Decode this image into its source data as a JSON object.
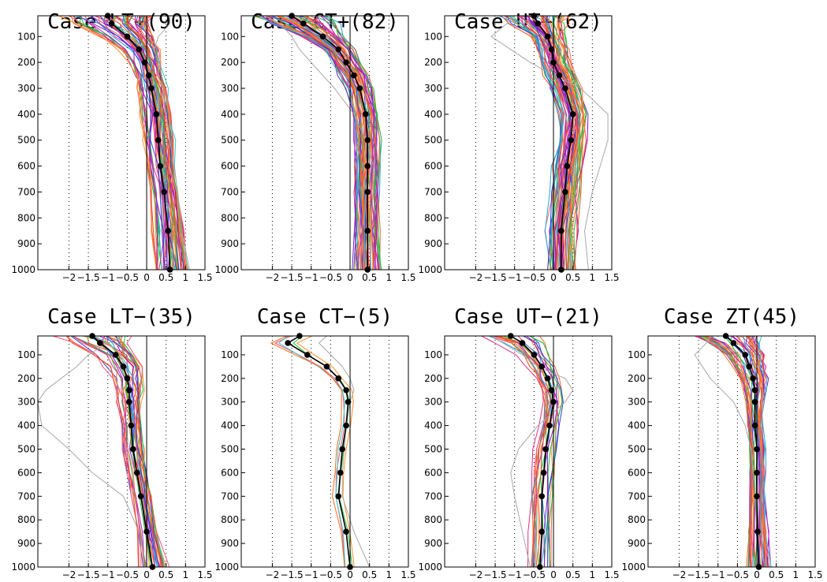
{
  "chart_data": [
    {
      "type": "line",
      "title": "Case LT+(90)",
      "xlim": [
        -2.8,
        1.5
      ],
      "ylim": [
        1000,
        20
      ],
      "xticks": [
        -2,
        -1.5,
        -1,
        -0.5,
        0,
        0.5,
        1,
        1.5
      ],
      "xtick_labels": [
        "−2",
        "−1.5",
        "−1",
        "−0.5",
        "0",
        "0.5",
        "1",
        "1.5"
      ],
      "yticks": [
        100,
        200,
        300,
        400,
        500,
        600,
        700,
        800,
        900,
        1000
      ],
      "ytick_labels": [
        "100",
        "200",
        "300",
        "400",
        "500",
        "600",
        "700",
        "800",
        "900",
        "1000"
      ],
      "levels": [
        20,
        50,
        100,
        150,
        200,
        250,
        300,
        400,
        500,
        600,
        700,
        850,
        1000
      ],
      "mean": [
        -1.0,
        -0.9,
        -0.5,
        -0.2,
        -0.05,
        0.05,
        0.12,
        0.25,
        0.3,
        0.35,
        0.45,
        0.55,
        0.6
      ],
      "spread": [
        1.2,
        1.0,
        0.7,
        0.5,
        0.4,
        0.35,
        0.4,
        0.4,
        0.4,
        0.35,
        0.35,
        0.4,
        0.45
      ],
      "count": 90,
      "outlier": [
        0.6,
        0.6,
        0.3,
        0.2,
        0.3,
        0.3,
        0.4,
        0.5,
        0.6,
        0.7,
        0.8,
        0.9,
        1.1
      ],
      "grid": true
    },
    {
      "type": "line",
      "title": "Case CT+(82)",
      "xlim": [
        -2.8,
        1.5
      ],
      "ylim": [
        1000,
        20
      ],
      "xticks": [
        -2,
        -1.5,
        -1,
        -0.5,
        0,
        0.5,
        1,
        1.5
      ],
      "xtick_labels": [
        "−2",
        "−1.5",
        "−1",
        "−0.5",
        "0",
        "0.5",
        "1",
        "1.5"
      ],
      "yticks": [
        100,
        200,
        300,
        400,
        500,
        600,
        700,
        800,
        900,
        1000
      ],
      "ytick_labels": [
        "100",
        "200",
        "300",
        "400",
        "500",
        "600",
        "700",
        "800",
        "900",
        "1000"
      ],
      "levels": [
        20,
        50,
        100,
        150,
        200,
        250,
        300,
        400,
        500,
        600,
        700,
        850,
        1000
      ],
      "mean": [
        -1.5,
        -1.2,
        -0.7,
        -0.3,
        -0.1,
        0.1,
        0.25,
        0.4,
        0.45,
        0.45,
        0.45,
        0.45,
        0.45
      ],
      "spread": [
        1.0,
        0.9,
        0.6,
        0.45,
        0.4,
        0.4,
        0.35,
        0.35,
        0.35,
        0.35,
        0.35,
        0.35,
        0.4
      ],
      "count": 82,
      "outlier": [
        -2.2,
        -1.8,
        -1.5,
        -1.3,
        -1.0,
        -0.7,
        -0.4,
        0.1,
        0.4,
        0.6,
        0.6,
        0.5,
        0.4
      ],
      "grid": true
    },
    {
      "type": "line",
      "title": "Case UT+(62)",
      "xlim": [
        -2.8,
        1.5
      ],
      "ylim": [
        1000,
        20
      ],
      "xticks": [
        -2,
        -1.5,
        -1,
        -0.5,
        0,
        0.5,
        1,
        1.5
      ],
      "xtick_labels": [
        "−2",
        "−1.5",
        "−1",
        "−0.5",
        "0",
        "0.5",
        "1",
        "1.5"
      ],
      "yticks": [
        100,
        200,
        300,
        400,
        500,
        600,
        700,
        800,
        900,
        1000
      ],
      "ytick_labels": [
        "100",
        "200",
        "300",
        "400",
        "500",
        "600",
        "700",
        "800",
        "900",
        "1000"
      ],
      "levels": [
        20,
        50,
        100,
        150,
        200,
        250,
        300,
        400,
        500,
        600,
        700,
        850,
        1000
      ],
      "mean": [
        -0.5,
        -0.4,
        -0.15,
        -0.05,
        0.0,
        0.15,
        0.3,
        0.5,
        0.45,
        0.35,
        0.3,
        0.2,
        0.2
      ],
      "spread": [
        1.0,
        0.8,
        0.5,
        0.45,
        0.45,
        0.45,
        0.45,
        0.4,
        0.4,
        0.4,
        0.4,
        0.4,
        0.4
      ],
      "count": 62,
      "outlier": [
        -1.0,
        -1.2,
        -1.6,
        -1.1,
        -0.6,
        0.0,
        0.7,
        1.4,
        1.4,
        1.2,
        1.0,
        0.8,
        0.9
      ],
      "grid": true
    },
    {
      "type": "line",
      "title": "Case LT−(35)",
      "xlim": [
        -2.8,
        1.5
      ],
      "ylim": [
        1000,
        20
      ],
      "xticks": [
        -2,
        -1.5,
        -1,
        -0.5,
        0,
        0.5,
        1,
        1.5
      ],
      "xtick_labels": [
        "−2",
        "−1.5",
        "−1",
        "−0.5",
        "0",
        "0.5",
        "1",
        "1.5"
      ],
      "yticks": [
        100,
        200,
        300,
        400,
        500,
        600,
        700,
        800,
        900,
        1000
      ],
      "ytick_labels": [
        "100",
        "200",
        "300",
        "400",
        "500",
        "600",
        "700",
        "800",
        "900",
        "1000"
      ],
      "levels": [
        20,
        50,
        100,
        150,
        200,
        250,
        300,
        400,
        500,
        600,
        700,
        850,
        1000
      ],
      "mean": [
        -1.4,
        -1.2,
        -0.8,
        -0.6,
        -0.5,
        -0.45,
        -0.45,
        -0.4,
        -0.35,
        -0.25,
        -0.15,
        0.0,
        0.15
      ],
      "spread": [
        1.0,
        0.8,
        0.6,
        0.5,
        0.4,
        0.4,
        0.35,
        0.3,
        0.3,
        0.3,
        0.3,
        0.3,
        0.4
      ],
      "count": 35,
      "outlier": [
        -0.6,
        -1.0,
        -1.5,
        -1.8,
        -2.2,
        -2.6,
        -2.8,
        -2.7,
        -2.0,
        -1.4,
        -0.6,
        -0.2,
        0.0
      ],
      "grid": true
    },
    {
      "type": "line",
      "title": "Case CT−(5)",
      "xlim": [
        -2.8,
        1.5
      ],
      "ylim": [
        1000,
        20
      ],
      "xticks": [
        -2,
        -1.5,
        -1,
        -0.5,
        0,
        0.5,
        1,
        1.5
      ],
      "xtick_labels": [
        "−2",
        "−1.5",
        "−1",
        "−0.5",
        "0",
        "0.5",
        "1",
        "1.5"
      ],
      "yticks": [
        100,
        200,
        300,
        400,
        500,
        600,
        700,
        800,
        900,
        1000
      ],
      "ytick_labels": [
        "100",
        "200",
        "300",
        "400",
        "500",
        "600",
        "700",
        "800",
        "900",
        "1000"
      ],
      "levels": [
        20,
        50,
        100,
        150,
        200,
        250,
        300,
        400,
        500,
        600,
        700,
        850,
        1000
      ],
      "mean": [
        -1.3,
        -1.6,
        -1.1,
        -0.6,
        -0.3,
        -0.1,
        -0.05,
        -0.1,
        -0.2,
        -0.25,
        -0.3,
        -0.1,
        0.0
      ],
      "spread": [
        0.5,
        0.45,
        0.4,
        0.3,
        0.25,
        0.2,
        0.2,
        0.15,
        0.15,
        0.15,
        0.15,
        0.15,
        0.2
      ],
      "count": 5,
      "outlier": [
        -0.6,
        -0.8,
        -0.5,
        -0.2,
        0.0,
        0.1,
        0.0,
        -0.1,
        -0.15,
        -0.2,
        -0.2,
        0.1,
        0.5
      ],
      "grid": true
    },
    {
      "type": "line",
      "title": "Case UT−(21)",
      "xlim": [
        -2.8,
        1.5
      ],
      "ylim": [
        1000,
        20
      ],
      "xticks": [
        -2,
        -1.5,
        -1,
        -0.5,
        0,
        0.5,
        1,
        1.5
      ],
      "xtick_labels": [
        "−2",
        "−1.5",
        "−1",
        "−0.5",
        "0",
        "0.5",
        "1",
        "1.5"
      ],
      "yticks": [
        100,
        200,
        300,
        400,
        500,
        600,
        700,
        800,
        900,
        1000
      ],
      "ytick_labels": [
        "100",
        "200",
        "300",
        "400",
        "500",
        "600",
        "700",
        "800",
        "900",
        "1000"
      ],
      "levels": [
        20,
        50,
        100,
        150,
        200,
        250,
        300,
        400,
        500,
        600,
        700,
        850,
        1000
      ],
      "mean": [
        -1.1,
        -0.8,
        -0.5,
        -0.3,
        -0.15,
        -0.05,
        0.0,
        -0.1,
        -0.2,
        -0.25,
        -0.3,
        -0.3,
        -0.35
      ],
      "spread": [
        0.9,
        0.7,
        0.5,
        0.4,
        0.35,
        0.3,
        0.3,
        0.3,
        0.35,
        0.35,
        0.35,
        0.35,
        0.4
      ],
      "count": 21,
      "outlier": [
        -1.6,
        -1.3,
        -0.8,
        -0.4,
        0.3,
        0.5,
        0.3,
        -0.4,
        -0.9,
        -1.1,
        -1.0,
        -0.8,
        -0.6
      ],
      "grid": true
    },
    {
      "type": "line",
      "title": "Case ZT(45)",
      "xlim": [
        -2.8,
        1.5
      ],
      "ylim": [
        1000,
        20
      ],
      "xticks": [
        -2,
        -1.5,
        -1,
        -0.5,
        0,
        0.5,
        1,
        1.5
      ],
      "xtick_labels": [
        "−2",
        "−1.5",
        "−1",
        "−0.5",
        "0",
        "0.5",
        "1",
        "1.5"
      ],
      "yticks": [
        100,
        200,
        300,
        400,
        500,
        600,
        700,
        800,
        900,
        1000
      ],
      "ytick_labels": [
        "100",
        "200",
        "300",
        "400",
        "500",
        "600",
        "700",
        "800",
        "900",
        "1000"
      ],
      "levels": [
        20,
        50,
        100,
        150,
        200,
        250,
        300,
        400,
        500,
        600,
        700,
        850,
        1000
      ],
      "mean": [
        -0.8,
        -0.6,
        -0.3,
        -0.2,
        -0.1,
        -0.05,
        -0.05,
        -0.05,
        0.0,
        0.0,
        0.0,
        0.02,
        0.05
      ],
      "spread": [
        0.9,
        0.7,
        0.5,
        0.4,
        0.35,
        0.3,
        0.25,
        0.2,
        0.2,
        0.2,
        0.2,
        0.25,
        0.3
      ],
      "count": 45,
      "outlier": [
        -1.2,
        -1.3,
        -1.6,
        -1.4,
        -1.2,
        -0.9,
        -0.6,
        -0.3,
        -0.15,
        -0.1,
        -0.05,
        0.0,
        0.05
      ],
      "grid": true
    }
  ],
  "colors": {
    "ensemble": [
      "#ff6a1a",
      "#e8501e",
      "#ff8c2a",
      "#f0602a",
      "#ff4f7a",
      "#e0308a",
      "#9a10c8",
      "#b020d0",
      "#7a20c0",
      "#18c838",
      "#20b840",
      "#30c8c8",
      "#20a0e0",
      "#2a40e0",
      "#ff7050",
      "#ff9040"
    ],
    "outlier": "#a8a8a8",
    "mean": "#000000",
    "axes": "#000000"
  }
}
